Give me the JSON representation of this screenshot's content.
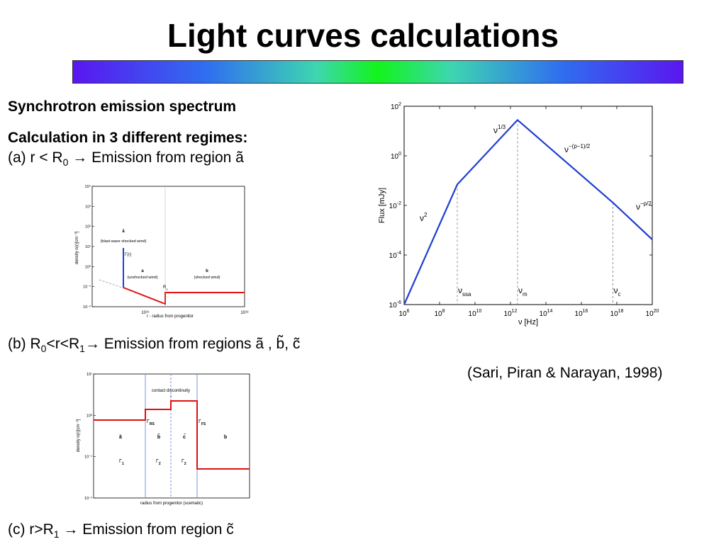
{
  "slide": {
    "title": "Light curves calculations",
    "section_heading": "Synchrotron emission spectrum",
    "regimes_heading": "Calculation in 3 different regimes:",
    "regime_a": {
      "prefix": "(a) r < R",
      "sub": "0",
      "arrow": "→",
      "text": " Emission from region ã"
    },
    "regime_b": {
      "prefix": "(b) R",
      "sub1": "0",
      "mid": "<r<R",
      "sub2": "1",
      "arrow": "→",
      "text": " Emission from regions ã , b̃, c̃"
    },
    "regime_c": {
      "prefix": "(c) r>R",
      "sub": "1",
      "arrow": "→",
      "text": " Emission from region c̃"
    },
    "citation": "(Sari, Piran & Narayan, 1998)",
    "colors": {
      "line_blue": "#1f3fd0",
      "line_red": "#e01010"
    }
  },
  "chart_data": [
    {
      "type": "line",
      "id": "spectrum",
      "xlabel": "ν [Hz]",
      "ylabel": "Flux [mJy]",
      "xscale": "log",
      "yscale": "log",
      "xlim": [
        1000000.0,
        1e+20
      ],
      "ylim": [
        1e-06,
        100.0
      ],
      "x_ticks": [
        "10^6",
        "10^8",
        "10^10",
        "10^12",
        "10^14",
        "10^16",
        "10^18",
        "10^20"
      ],
      "y_ticks": [
        "10^-6",
        "10^-4",
        "10^-2",
        "10^0",
        "10^2"
      ],
      "series": [
        {
          "x": [
            1000000.0,
            1000000000.0,
            2500000000000.0,
            6e+17,
            1e+20
          ],
          "y": [
            1e-06,
            0.07,
            28,
            0.013,
            0.00042
          ]
        }
      ],
      "breaks": [
        {
          "label": "ν",
          "sub": "ssa",
          "x": 1000000000.0
        },
        {
          "label": "ν",
          "sub": "m",
          "x": 2500000000000.0
        },
        {
          "label": "ν",
          "sub": "c",
          "x": 6e+17
        }
      ],
      "annotations": [
        {
          "text": "ν",
          "sup": "2"
        },
        {
          "text": "ν",
          "sup": "1/3"
        },
        {
          "text": "ν",
          "sup": "−(p−1)/2"
        },
        {
          "text": "ν",
          "sup": "−p/2"
        }
      ]
    },
    {
      "type": "line",
      "id": "density_a",
      "xlabel": "r - radius from progenitor",
      "ylabel": "density n(r)[cm⁻³]",
      "x_ticks": [
        "10¹⁶",
        "10¹⁸"
      ],
      "y_ticks": [
        "10⁻²",
        "10⁻¹",
        "10⁰",
        "10¹",
        "10²",
        "10³",
        "10⁴"
      ],
      "labels": {
        "a_tilde": "ã",
        "a_tilde_desc": "(blast-wave shocked wind)",
        "gamma": "Γ(r)",
        "a": "a",
        "a_desc": "(unshocked wind)",
        "b": "b",
        "b_desc": "(shocked wind)",
        "r0": "R",
        "r0_sub": "0"
      }
    },
    {
      "type": "line",
      "id": "density_b",
      "xlabel": "radius from progenitor (scematic)",
      "ylabel": "density n(r)[cm⁻³]",
      "y_ticks": [
        "10⁻²",
        "10⁻¹",
        "10⁰",
        "10¹"
      ],
      "labels": {
        "contact": "contact discontinuity",
        "gamma_rs": "Γ",
        "gamma_rs_sub": "RS",
        "gamma_fs": "Γ",
        "gamma_fs_sub": "FS",
        "a_tilde": "ã",
        "b_tilde": "b̃",
        "c_tilde": "c̃",
        "b": "b",
        "gamma1": "Γ",
        "gamma1_sub": "1",
        "gamma2a": "Γ",
        "gamma2a_sub": "2",
        "gamma2b": "Γ",
        "gamma2b_sub": "2"
      }
    }
  ]
}
